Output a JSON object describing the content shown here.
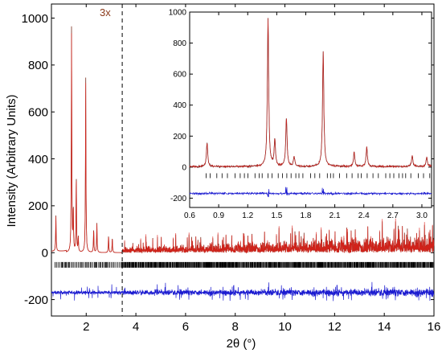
{
  "chart_data": [
    {
      "id": "main",
      "type": "line",
      "xlabel": "2θ (°)",
      "ylabel": "Intensity (Arbitrary Units)",
      "xlim": [
        0.6,
        16
      ],
      "ylim": [
        -270,
        1060
      ],
      "xticks": [
        2,
        4,
        6,
        8,
        10,
        12,
        14,
        16
      ],
      "yticks": [
        -200,
        0,
        200,
        400,
        600,
        800,
        1000
      ],
      "annotation": "3x",
      "divider_x": 3.45,
      "series": [
        {
          "role": "observed",
          "color": "#7a2e1e"
        },
        {
          "role": "calculated",
          "color": "#e0201a"
        },
        {
          "role": "reflection_ticks",
          "color": "#000000",
          "baseline": -50
        },
        {
          "role": "difference",
          "color": "#1a1ad0",
          "baseline": -170
        }
      ],
      "peaks": [
        {
          "x": 0.78,
          "y": 152
        },
        {
          "x": 1.41,
          "y": 958
        },
        {
          "x": 1.48,
          "y": 170
        },
        {
          "x": 1.6,
          "y": 315
        },
        {
          "x": 1.68,
          "y": 62
        },
        {
          "x": 1.98,
          "y": 745
        },
        {
          "x": 2.3,
          "y": 95
        },
        {
          "x": 2.43,
          "y": 125
        },
        {
          "x": 2.9,
          "y": 70
        },
        {
          "x": 3.05,
          "y": 60
        }
      ]
    },
    {
      "id": "inset",
      "type": "line",
      "xlim": [
        0.6,
        3.1
      ],
      "ylim": [
        -260,
        1000
      ],
      "xticks": [
        0.6,
        0.9,
        1.2,
        1.5,
        1.8,
        2.1,
        2.4,
        2.7,
        3.0
      ],
      "yticks": [
        -200,
        0,
        200,
        400,
        600,
        800,
        1000
      ],
      "reflection_ticks_baseline": -55,
      "difference_baseline": -170
    }
  ]
}
